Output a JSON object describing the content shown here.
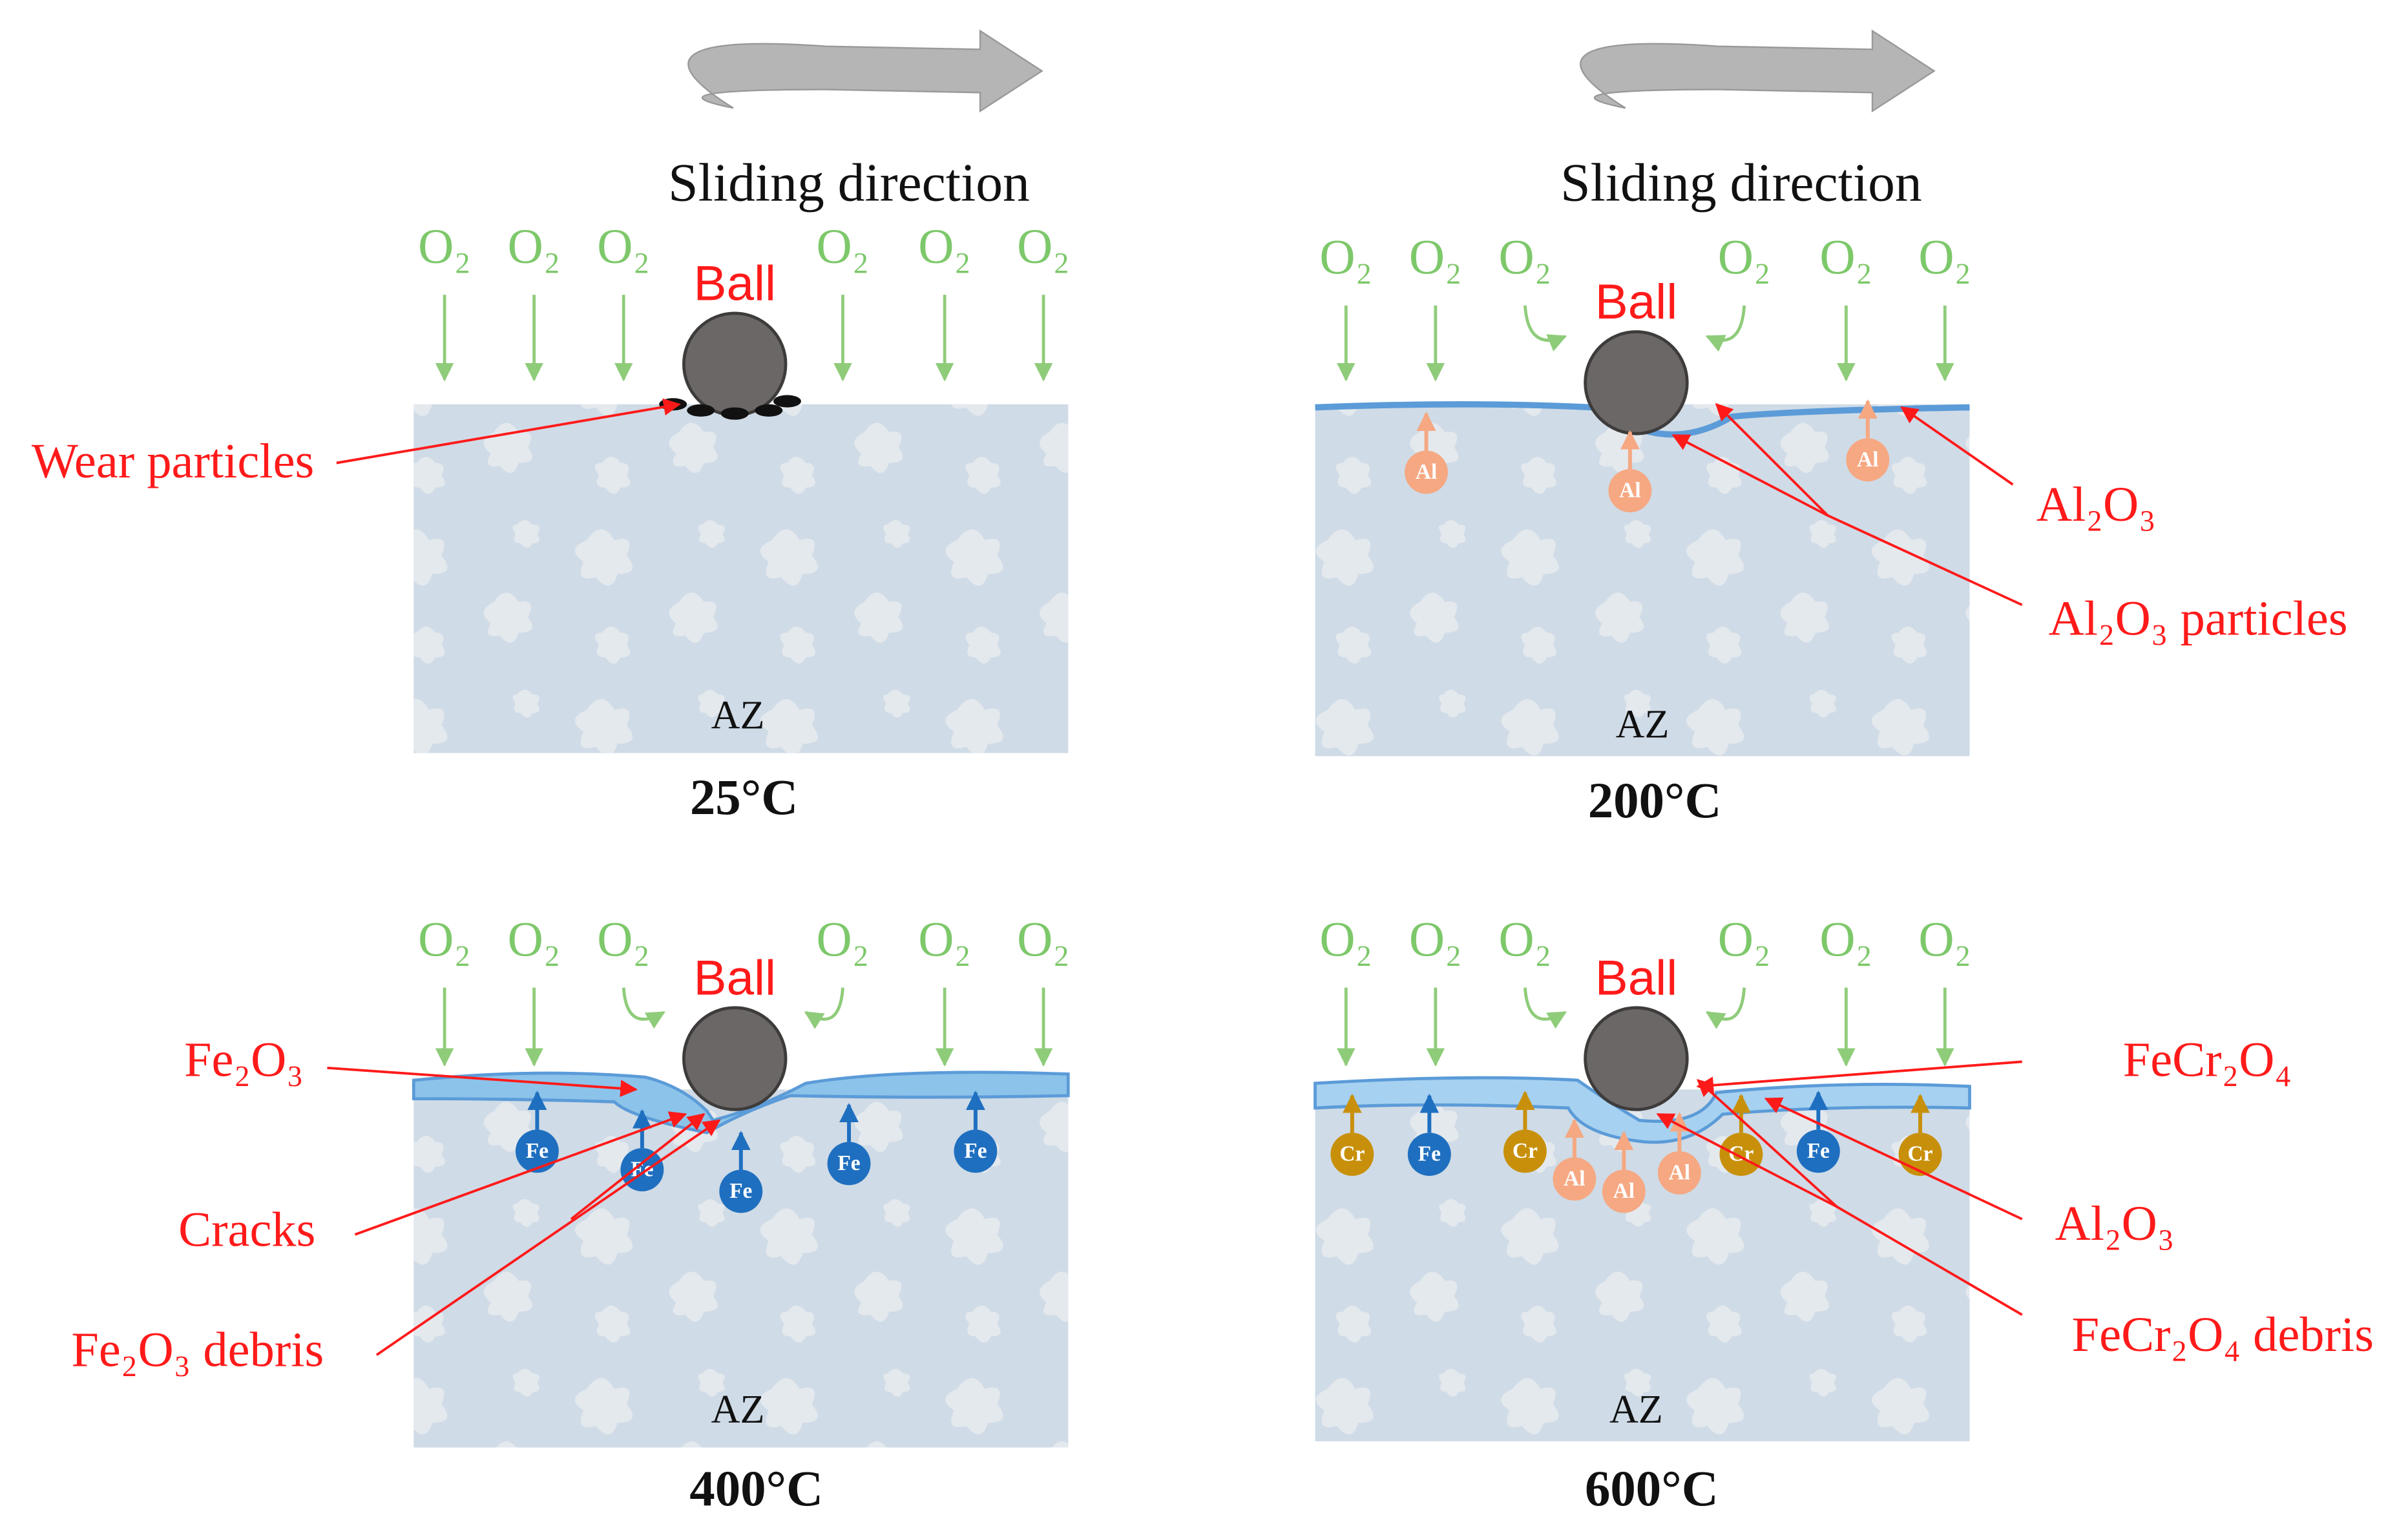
{
  "panels": [
    {
      "sliding_label": "Sliding direction",
      "ball": "Ball",
      "substrate": "AZ",
      "temperature": "25°C",
      "oxygen": [
        "O₂",
        "O₂",
        "O₂",
        "O₂",
        "O₂",
        "O₂"
      ],
      "annotations": [
        "Wear particles"
      ],
      "ions": []
    },
    {
      "sliding_label": "Sliding direction",
      "ball": "Ball",
      "substrate": "AZ",
      "temperature": "200°C",
      "oxygen": [
        "O₂",
        "O₂",
        "O₂",
        "O₂",
        "O₂",
        "O₂"
      ],
      "annotations": [
        "Al₂O₃",
        "Al₂O₃ particles"
      ],
      "ions": [
        {
          "label": "Al",
          "color": "#f5a882"
        },
        {
          "label": "Al",
          "color": "#f5a882"
        },
        {
          "label": "Al",
          "color": "#f5a882"
        }
      ]
    },
    {
      "ball": "Ball",
      "substrate": "AZ",
      "temperature": "400°C",
      "oxygen": [
        "O₂",
        "O₂",
        "O₂",
        "O₂",
        "O₂",
        "O₂"
      ],
      "annotations": [
        "Fe₂O₃",
        "Cracks",
        "Fe₂O₃ debris"
      ],
      "ions": [
        {
          "label": "Fe",
          "color": "#1f6fc0"
        },
        {
          "label": "Fe",
          "color": "#1f6fc0"
        },
        {
          "label": "Fe",
          "color": "#1f6fc0"
        },
        {
          "label": "Fe",
          "color": "#1f6fc0"
        },
        {
          "label": "Fe",
          "color": "#1f6fc0"
        }
      ]
    },
    {
      "ball": "Ball",
      "substrate": "AZ",
      "temperature": "600°C",
      "oxygen": [
        "O₂",
        "O₂",
        "O₂",
        "O₂",
        "O₂",
        "O₂"
      ],
      "annotations": [
        "FeCr₂O₄",
        "Al₂O₃",
        "FeCr₂O₄ debris"
      ],
      "ions": [
        {
          "label": "Cr",
          "color": "#c8900a"
        },
        {
          "label": "Fe",
          "color": "#1f6fc0"
        },
        {
          "label": "Cr",
          "color": "#c8900a"
        },
        {
          "label": "Al",
          "color": "#f5a882"
        },
        {
          "label": "Al",
          "color": "#f5a882"
        },
        {
          "label": "Al",
          "color": "#f5a882"
        },
        {
          "label": "Cr",
          "color": "#c8900a"
        },
        {
          "label": "Fe",
          "color": "#1f6fc0"
        },
        {
          "label": "Cr",
          "color": "#c8900a"
        }
      ]
    }
  ]
}
